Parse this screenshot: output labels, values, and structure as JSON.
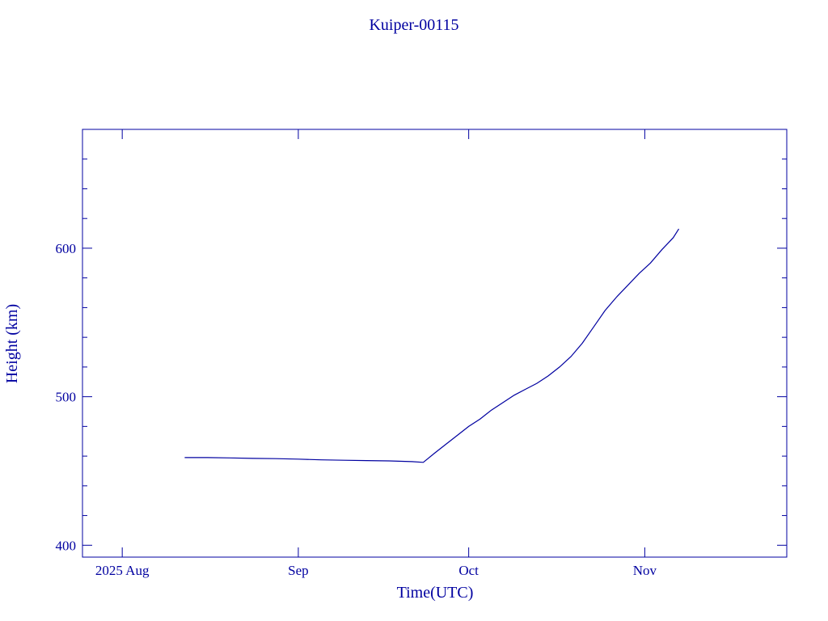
{
  "chart_data": {
    "type": "line",
    "title": "Kuiper-00115",
    "x_label": "Time(UTC)",
    "y_label": "Height (km)",
    "color": "#0000a0",
    "x": [
      "2025-08-12",
      "2025-08-16",
      "2025-08-20",
      "2025-08-24",
      "2025-08-28",
      "2025-09-01",
      "2025-09-05",
      "2025-09-09",
      "2025-09-13",
      "2025-09-17",
      "2025-09-21",
      "2025-09-23",
      "2025-09-25",
      "2025-09-27",
      "2025-09-29",
      "2025-10-01",
      "2025-10-03",
      "2025-10-05",
      "2025-10-07",
      "2025-10-09",
      "2025-10-11",
      "2025-10-13",
      "2025-10-15",
      "2025-10-17",
      "2025-10-19",
      "2025-10-21",
      "2025-10-23",
      "2025-10-25",
      "2025-10-27",
      "2025-10-29",
      "2025-10-31",
      "2025-11-02",
      "2025-11-04",
      "2025-11-06",
      "2025-11-07"
    ],
    "values": [
      459,
      459,
      458.8,
      458.5,
      458.3,
      458,
      457.5,
      457.2,
      457,
      456.8,
      456.3,
      455.8,
      462,
      468,
      474,
      480,
      485,
      491,
      496,
      501,
      505,
      509,
      514,
      520,
      527,
      536,
      547,
      558,
      567,
      575,
      583,
      590,
      599,
      607,
      613
    ],
    "xlim": [
      "2025-07-25",
      "2025-11-26"
    ],
    "xticks": [
      {
        "value": "2025-08-01",
        "label": "2025 Aug"
      },
      {
        "value": "2025-09-01",
        "label": "Sep"
      },
      {
        "value": "2025-10-01",
        "label": "Oct"
      },
      {
        "value": "2025-11-01",
        "label": "Nov"
      }
    ],
    "ylim": [
      392,
      680
    ],
    "yticks": [
      400,
      500,
      600
    ],
    "yminorticks": [
      420,
      440,
      460,
      480,
      520,
      540,
      560,
      580,
      620,
      640,
      660,
      680
    ]
  }
}
